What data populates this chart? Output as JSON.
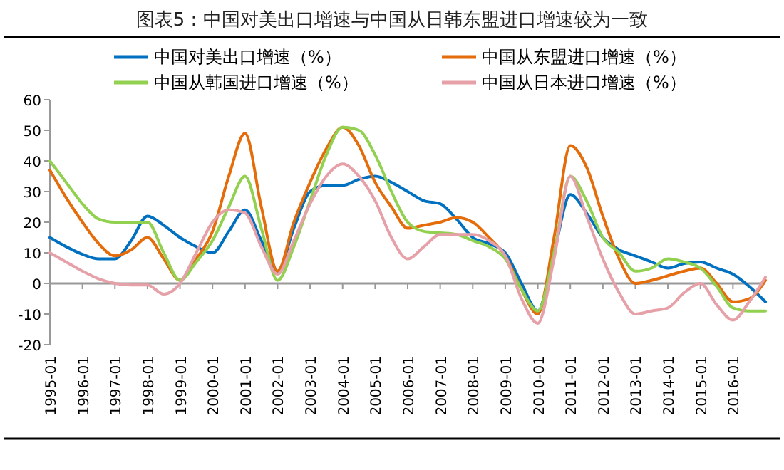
{
  "chart_data": {
    "type": "line",
    "title": "图表5：中国对美出口增速与中国从日韩东盟进口增速较为一致",
    "categories": [
      "1995-01",
      null,
      "1996-01",
      null,
      "1997-01",
      null,
      "1998-01",
      null,
      "1999-01",
      null,
      "2000-01",
      null,
      "2001-01",
      null,
      "2002-01",
      null,
      "2003-01",
      null,
      "2004-01",
      null,
      "2005-01",
      null,
      "2006-01",
      null,
      "2007-01",
      null,
      "2008-01",
      null,
      "2009-01",
      null,
      "2010-01",
      null,
      "2011-01",
      null,
      "2012-01",
      null,
      "2013-01",
      null,
      "2014-01",
      null,
      "2015-01",
      null,
      "2016-01",
      null,
      null
    ],
    "series": [
      {
        "name": "中国对美出口增速（%）",
        "color": "#0070c0",
        "values": [
          15,
          12,
          9.5,
          8,
          8,
          14,
          22,
          19,
          15,
          12,
          10,
          17,
          24,
          14,
          4,
          18,
          30,
          32,
          32,
          34,
          35,
          33,
          30,
          27,
          26,
          21,
          15,
          13,
          10,
          0,
          -9,
          10,
          29,
          23,
          15,
          11,
          9,
          7,
          5,
          6.5,
          7,
          5,
          3,
          -1,
          -6
        ]
      },
      {
        "name": "中国从东盟进口增速（%）",
        "color": "#e46c0a",
        "values": [
          37,
          28,
          20,
          13,
          9,
          11,
          15,
          8,
          1,
          8,
          17,
          35,
          49,
          25,
          4,
          20,
          33,
          44,
          51,
          45,
          33,
          25,
          18,
          19,
          20,
          21.5,
          20,
          15,
          9,
          -2,
          -10,
          15,
          45,
          38,
          22,
          8,
          0,
          1,
          2.5,
          4,
          5,
          0,
          -6,
          -5,
          1
        ]
      },
      {
        "name": "中国从韩国进口增速（%）",
        "color": "#92d050",
        "values": [
          40,
          33,
          26,
          21,
          20,
          20,
          20,
          10,
          1,
          7,
          14,
          25,
          35,
          18,
          1,
          12,
          27,
          42,
          51,
          50,
          42,
          30,
          20,
          17,
          16.5,
          16,
          14,
          12,
          8,
          -2,
          -9,
          10,
          35,
          27,
          15,
          10,
          4,
          5,
          8,
          7,
          5,
          -1,
          -8,
          -9,
          -9
        ]
      },
      {
        "name": "中国从日本进口增速（%）",
        "color": "#e6a0a8",
        "values": [
          10,
          7,
          4,
          1.5,
          0,
          -0.5,
          -0.5,
          -3.5,
          0,
          10,
          20,
          24,
          23,
          12,
          3,
          14,
          26,
          35,
          39,
          35,
          27,
          15,
          8,
          12,
          16,
          16,
          16,
          14,
          9,
          -5,
          -13,
          8,
          35,
          22,
          8,
          -3,
          -10,
          -9,
          -8,
          -3,
          0,
          -7,
          -12,
          -6,
          2
        ]
      }
    ],
    "ylim": [
      -20,
      60
    ],
    "yticks": [
      -20,
      -10,
      0,
      10,
      20,
      30,
      40,
      50,
      60
    ],
    "legend": "top",
    "line_style": "solid",
    "marker": "none"
  }
}
